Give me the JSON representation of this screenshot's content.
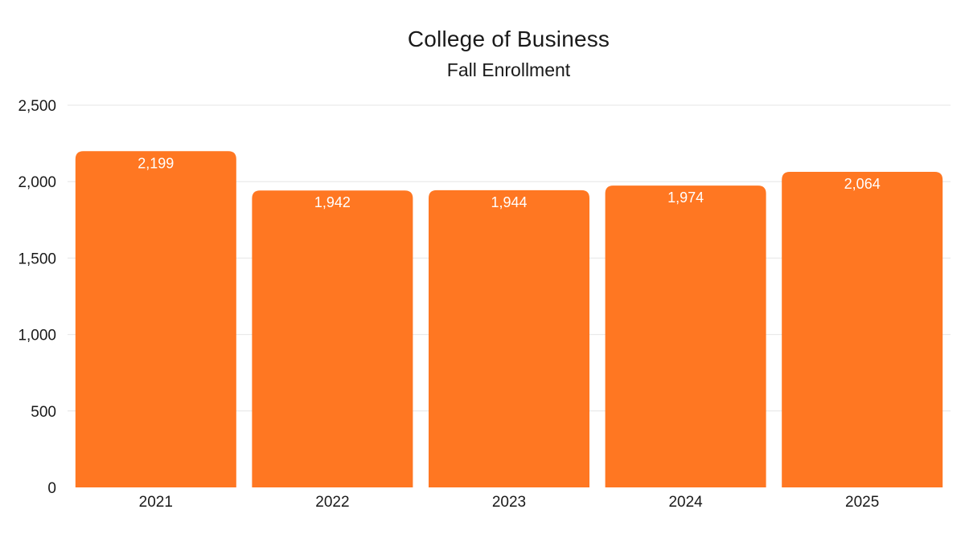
{
  "chart_data": {
    "type": "bar",
    "title": "College of Business",
    "subtitle": "Fall Enrollment",
    "categories": [
      "2021",
      "2022",
      "2023",
      "2024",
      "2025"
    ],
    "values": [
      2199,
      1942,
      1944,
      1974,
      2064
    ],
    "value_labels": [
      "2,199",
      "1,942",
      "1,944",
      "1,974",
      "2,064"
    ],
    "ylim": [
      0,
      2500
    ],
    "yticks": [
      0,
      500,
      1000,
      1500,
      2000,
      2500
    ],
    "ytick_labels": [
      "0",
      "500",
      "1,000",
      "1,500",
      "2,000",
      "2,500"
    ],
    "xlabel": "",
    "ylabel": "",
    "grid": true,
    "legend": "none",
    "bar_color": "#FF7722",
    "value_label_color": "#FFFFFF",
    "gridline_color": "#E6E6E6"
  }
}
